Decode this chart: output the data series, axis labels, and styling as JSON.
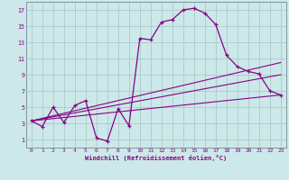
{
  "xlabel": "Windchill (Refroidissement éolien,°C)",
  "bg_color": "#cce8e8",
  "grid_color": "#aacccc",
  "line_color": "#880088",
  "xlim": [
    -0.5,
    23.5
  ],
  "ylim": [
    0,
    18
  ],
  "xticks": [
    0,
    1,
    2,
    3,
    4,
    5,
    6,
    7,
    8,
    9,
    10,
    11,
    12,
    13,
    14,
    15,
    16,
    17,
    18,
    19,
    20,
    21,
    22,
    23
  ],
  "yticks": [
    1,
    3,
    5,
    7,
    9,
    11,
    13,
    15,
    17
  ],
  "curve1_x": [
    0,
    1,
    2,
    3,
    4,
    5,
    6,
    7,
    8,
    9,
    10,
    11,
    12,
    13,
    14,
    15,
    16,
    17,
    18,
    19,
    20,
    21,
    22,
    23
  ],
  "curve1_y": [
    3.3,
    2.6,
    5.0,
    3.1,
    5.2,
    5.8,
    1.2,
    0.8,
    4.8,
    2.7,
    13.5,
    13.3,
    15.5,
    15.8,
    17.0,
    17.2,
    16.6,
    15.2,
    11.4,
    10.0,
    9.4,
    9.1,
    7.0,
    6.5
  ],
  "line1_x": [
    0,
    23
  ],
  "line1_y": [
    3.3,
    10.5
  ],
  "line2_x": [
    0,
    23
  ],
  "line2_y": [
    3.3,
    9.0
  ],
  "line3_x": [
    0,
    23
  ],
  "line3_y": [
    3.3,
    6.5
  ]
}
